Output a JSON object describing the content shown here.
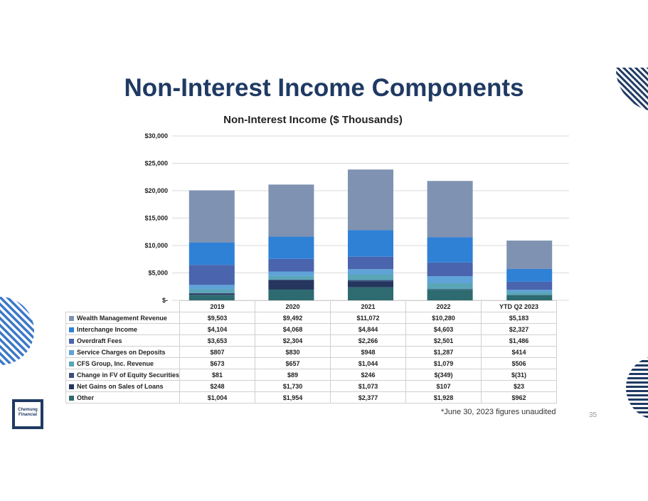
{
  "slide": {
    "title": "Non-Interest Income Components",
    "footnote": "*June 30, 2023 figures unaudited",
    "page_number": "35",
    "logo_text": "Chemung Financial"
  },
  "chart_data": {
    "type": "bar",
    "stacked": true,
    "title": "Non-Interest Income ($ Thousands)",
    "categories": [
      "2019",
      "2020",
      "2021",
      "2022",
      "YTD Q2 2023"
    ],
    "ylim": [
      0,
      30000
    ],
    "yticks": [
      "$-",
      "$5,000",
      "$10,000",
      "$15,000",
      "$20,000",
      "$25,000",
      "$30,000"
    ],
    "ytick_values": [
      0,
      5000,
      10000,
      15000,
      20000,
      25000,
      30000
    ],
    "grid": true,
    "series": [
      {
        "name": "Wealth Management Revenue",
        "color": "#7f92b2",
        "values": [
          9503,
          9492,
          11072,
          10280,
          5183
        ],
        "labels": [
          "$9,503",
          "$9,492",
          "$11,072",
          "$10,280",
          "$5,183"
        ]
      },
      {
        "name": "Interchange Income",
        "color": "#2f81d6",
        "values": [
          4104,
          4068,
          4844,
          4603,
          2327
        ],
        "labels": [
          "$4,104",
          "$4,068",
          "$4,844",
          "$4,603",
          "$2,327"
        ]
      },
      {
        "name": "Overdraft Fees",
        "color": "#4a64ad",
        "values": [
          3653,
          2304,
          2266,
          2501,
          1486
        ],
        "labels": [
          "$3,653",
          "$2,304",
          "$2,266",
          "$2,501",
          "$1,486"
        ]
      },
      {
        "name": "Service Charges on Deposits",
        "color": "#5fa3d8",
        "values": [
          807,
          830,
          948,
          1287,
          414
        ],
        "labels": [
          "$807",
          "$830",
          "$948",
          "$1,287",
          "$414"
        ]
      },
      {
        "name": "CFS Group, Inc. Revenue",
        "color": "#5aa6b8",
        "values": [
          673,
          657,
          1044,
          1079,
          506
        ],
        "labels": [
          "$673",
          "$657",
          "$1,044",
          "$1,079",
          "$506"
        ]
      },
      {
        "name": "Change in FV of Equity Securities",
        "color": "#3d4e7a",
        "values": [
          81,
          89,
          246,
          -349,
          -31
        ],
        "labels": [
          "$81",
          "$89",
          "$246",
          "$(349)",
          "$(31)"
        ]
      },
      {
        "name": "Net Gains on Sales of Loans",
        "color": "#25365e",
        "values": [
          248,
          1730,
          1073,
          107,
          23
        ],
        "labels": [
          "$248",
          "$1,730",
          "$1,073",
          "$107",
          "$23"
        ]
      },
      {
        "name": "Other",
        "color": "#2e6b70",
        "values": [
          1004,
          1954,
          2377,
          1928,
          962
        ],
        "labels": [
          "$1,004",
          "$1,954",
          "$2,377",
          "$1,928",
          "$962"
        ]
      }
    ]
  }
}
